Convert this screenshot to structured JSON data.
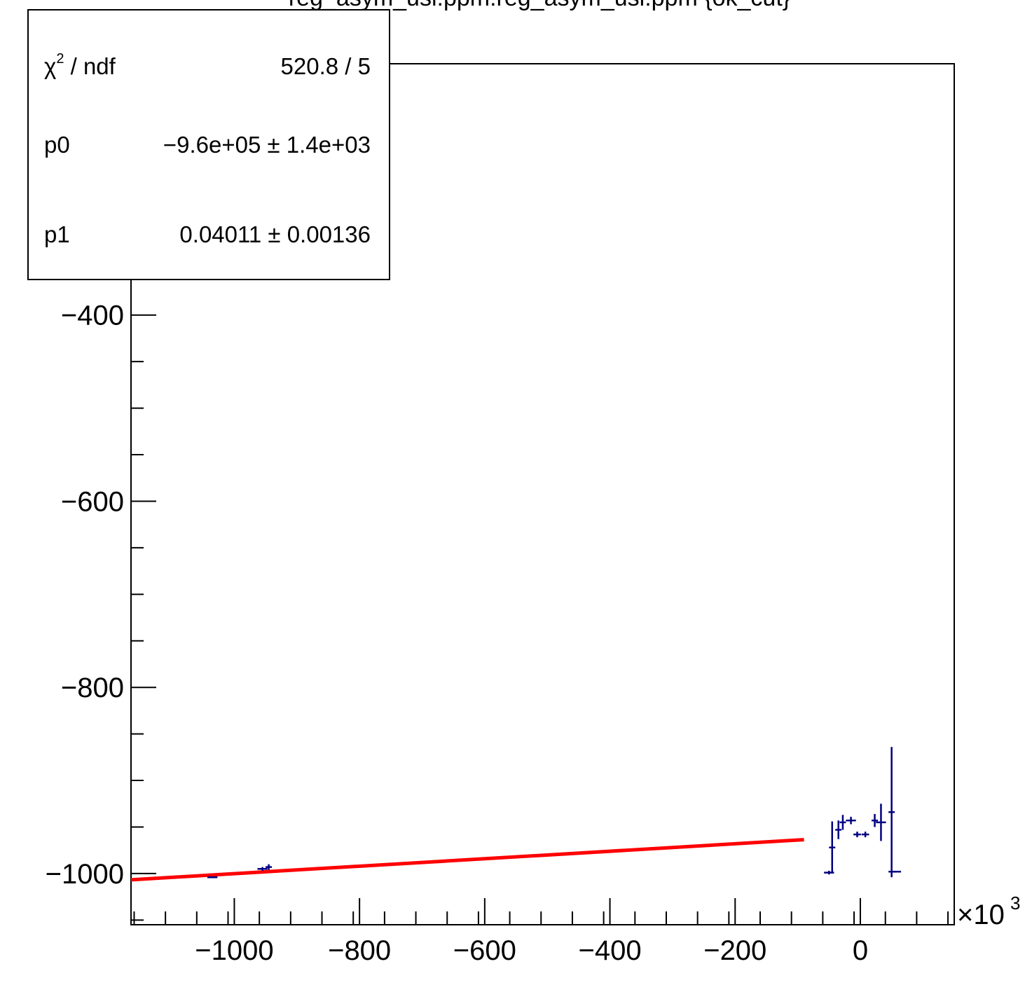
{
  "chart_data": {
    "type": "scatter",
    "title": "reg_asym_usl:ppm:reg_asym_usl:ppm {ok_cut}",
    "xlabel": "",
    "ylabel": "",
    "x_multiplier_label": "×10",
    "x_multiplier_exponent": "3",
    "xlim": [
      -1165,
      150
    ],
    "ylim": [
      -1055,
      -130
    ],
    "x_ticks": [
      -1000,
      -800,
      -600,
      -400,
      -200,
      0
    ],
    "x_tick_labels": [
      "−1000",
      "−800",
      "−600",
      "−400",
      "−200",
      "0"
    ],
    "y_ticks": [
      -400,
      -600,
      -800,
      -1000
    ],
    "y_tick_labels": [
      "−400",
      "−600",
      "−800",
      "−1000"
    ],
    "grid": false,
    "series": [
      {
        "style": "points-with-errors",
        "color": "#000080",
        "points": [
          {
            "x": -1035,
            "y": -1004,
            "xerr": 8,
            "yerr": 1
          },
          {
            "x": -955,
            "y": -995,
            "xerr": 8,
            "yerr": 2
          },
          {
            "x": -945,
            "y": -993,
            "xerr": 5,
            "yerr": 3
          },
          {
            "x": -50,
            "y": -999,
            "xerr": 8,
            "yerr": 2
          },
          {
            "x": -45,
            "y": -972,
            "xerr": 5,
            "yerr": 28
          },
          {
            "x": -35,
            "y": -953,
            "xerr": 5,
            "yerr": 10
          },
          {
            "x": -28,
            "y": -945,
            "xerr": 5,
            "yerr": 8
          },
          {
            "x": -15,
            "y": -943,
            "xerr": 8,
            "yerr": 4
          },
          {
            "x": -5,
            "y": -958,
            "xerr": 6,
            "yerr": 3
          },
          {
            "x": 8,
            "y": -958,
            "xerr": 6,
            "yerr": 3
          },
          {
            "x": 23,
            "y": -943,
            "xerr": 5,
            "yerr": 7
          },
          {
            "x": 33,
            "y": -945,
            "xerr": 8,
            "yerr": 20
          },
          {
            "x": 50,
            "y": -934,
            "xerr": 5,
            "yerr": 70
          },
          {
            "x": 55,
            "y": -998,
            "xerr": 10,
            "yerr": 1
          }
        ]
      },
      {
        "style": "fit-line",
        "color": "#ff0000",
        "p0": -960000,
        "p1": 0.04011,
        "x_range": [
          -1165,
          -90
        ]
      }
    ]
  },
  "stats": {
    "rows": [
      {
        "label": "χ",
        "label_sup": "2",
        "label_suffix": " / ndf",
        "value": "520.8 / 5"
      },
      {
        "label": "p0",
        "label_sup": "",
        "label_suffix": "",
        "value": "−9.6e+05 ± 1.4e+03"
      },
      {
        "label": "p1",
        "label_sup": "",
        "label_suffix": "",
        "value": "0.04011 ± 0.00136"
      }
    ]
  }
}
